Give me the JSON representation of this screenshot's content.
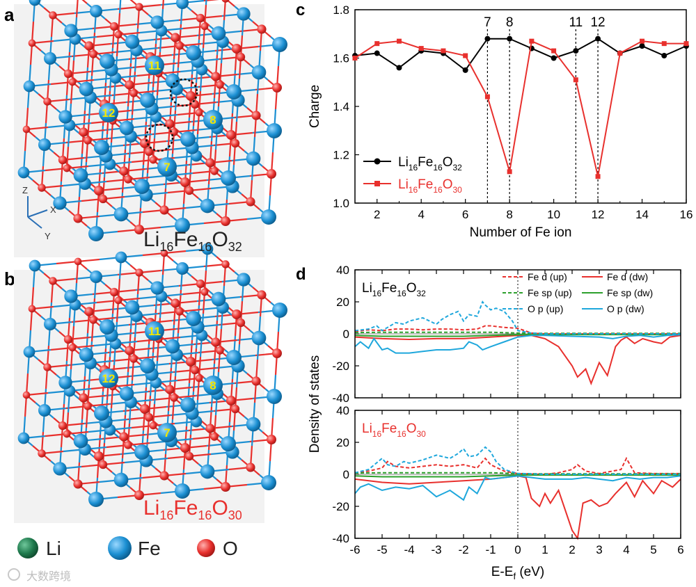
{
  "panels": {
    "a": "a",
    "b": "b",
    "c": "c",
    "d": "d"
  },
  "structure_a": {
    "formula": {
      "base1": "Li",
      "sub1": "16",
      "base2": "Fe",
      "sub2": "16",
      "base3": "O",
      "sub3": "32"
    },
    "site_labels": [
      "11",
      "12",
      "8",
      "7"
    ],
    "axes": {
      "z": "Z",
      "x": "X",
      "y": "Y"
    }
  },
  "structure_b": {
    "formula": {
      "base1": "Li",
      "sub1": "16",
      "base2": "Fe",
      "sub2": "16",
      "base3": "O",
      "sub3": "30"
    },
    "site_labels": [
      "11",
      "12",
      "8",
      "7"
    ]
  },
  "atom_legend": [
    {
      "label": "Li",
      "color": "#1f7a4d"
    },
    {
      "label": "Fe",
      "color": "#1b8fd2"
    },
    {
      "label": "O",
      "color": "#e8302d"
    }
  ],
  "watermark": "大数跨境",
  "colors": {
    "li": "#1f7a4d",
    "fe": "#1b8fd2",
    "o": "#e8302d",
    "black": "#000000",
    "red": "#e8302d",
    "green": "#2ca02c",
    "cyan": "#1ea7dc"
  },
  "chart_data": [
    {
      "type": "line",
      "panel": "c",
      "xlabel": "Number of Fe ion",
      "ylabel": "Charge",
      "xlim": [
        1,
        16
      ],
      "ylim": [
        1.0,
        1.8
      ],
      "xticks": [
        2,
        4,
        6,
        8,
        10,
        12,
        14,
        16
      ],
      "yticks": [
        1.0,
        1.2,
        1.4,
        1.6,
        1.8
      ],
      "x": [
        1,
        2,
        3,
        4,
        5,
        6,
        7,
        8,
        9,
        10,
        11,
        12,
        13,
        14,
        15,
        16
      ],
      "series": [
        {
          "name": "Li16Fe16O32",
          "base1": "Li",
          "sub1": "16",
          "base2": "Fe",
          "sub2": "16",
          "base3": "O",
          "sub3": "32",
          "color": "#000000",
          "marker": "circle",
          "values": [
            1.61,
            1.62,
            1.56,
            1.63,
            1.62,
            1.55,
            1.68,
            1.68,
            1.64,
            1.6,
            1.63,
            1.68,
            1.62,
            1.65,
            1.61,
            1.65
          ]
        },
        {
          "name": "Li16Fe16O30",
          "base1": "Li",
          "sub1": "16",
          "base2": "Fe",
          "sub2": "16",
          "base3": "O",
          "sub3": "30",
          "color": "#e8302d",
          "marker": "square",
          "values": [
            1.6,
            1.66,
            1.67,
            1.64,
            1.63,
            1.61,
            1.44,
            1.13,
            1.67,
            1.63,
            1.51,
            1.11,
            1.62,
            1.67,
            1.66,
            1.66
          ]
        }
      ],
      "vlines": [
        {
          "x": 7,
          "label": "7"
        },
        {
          "x": 8,
          "label": "8"
        },
        {
          "x": 11,
          "label": "11"
        },
        {
          "x": 12,
          "label": "12"
        }
      ]
    },
    {
      "type": "line",
      "panel": "d",
      "xlabel": "E-E",
      "xlabel_sub": "f",
      "xlabel_unit": " (eV)",
      "ylabel": "Density of states",
      "xlim": [
        -6,
        6
      ],
      "xticks": [
        -6,
        -5,
        -4,
        -3,
        -2,
        -1,
        0,
        1,
        2,
        3,
        4,
        5,
        6
      ],
      "subplots": [
        {
          "title": {
            "base1": "Li",
            "sub1": "16",
            "base2": "Fe",
            "sub2": "16",
            "base3": "O",
            "sub3": "32"
          },
          "title_color": "#000000",
          "ylim": [
            -40,
            40
          ],
          "yticks": [
            -40,
            -20,
            0,
            20,
            40
          ],
          "series": [
            {
              "name": "Fe d (up)",
              "color": "#e8302d",
              "dash": true,
              "x": [
                -6,
                -5.5,
                -5,
                -4.5,
                -4,
                -3.5,
                -3,
                -2.5,
                -2,
                -1.5,
                -1.2,
                -1,
                -0.5,
                0,
                0.5,
                1,
                2,
                3,
                4,
                5,
                6
              ],
              "y": [
                1.5,
                2.5,
                2,
                3,
                3,
                2.5,
                3,
                3,
                2.5,
                3,
                5,
                5,
                4,
                3.5,
                0.5,
                0,
                0,
                0,
                0,
                0,
                0
              ]
            },
            {
              "name": "Fe d (dw)",
              "color": "#e8302d",
              "dash": false,
              "x": [
                -6,
                -5,
                -4,
                -3,
                -2,
                -1,
                0,
                0.5,
                1,
                1.5,
                2,
                2.2,
                2.5,
                2.7,
                3,
                3.3,
                3.6,
                3.8,
                4,
                4.3,
                4.6,
                5,
                5.3,
                5.6,
                6
              ],
              "y": [
                -2,
                -3,
                -3.5,
                -3,
                -3,
                -2,
                -1,
                -1,
                -3,
                -8,
                -20,
                -27,
                -22,
                -31,
                -18,
                -26,
                -8,
                -4,
                -2,
                -6,
                -3,
                -5,
                -6,
                -2,
                -1
              ]
            },
            {
              "name": "Fe sp (up)",
              "color": "#2ca02c",
              "dash": true,
              "x": [
                -6,
                -5,
                -4,
                -3,
                -2,
                -1,
                0,
                1,
                2,
                3,
                4,
                5,
                6
              ],
              "y": [
                0.8,
                1,
                1,
                1,
                1,
                1,
                0.5,
                0.3,
                0.3,
                0.3,
                0.3,
                0.3,
                0.3
              ]
            },
            {
              "name": "Fe sp (dw)",
              "color": "#2ca02c",
              "dash": false,
              "x": [
                -6,
                -5,
                -4,
                -3,
                -2,
                -1,
                0,
                1,
                2,
                3,
                4,
                5,
                6
              ],
              "y": [
                -1,
                -1.5,
                -1.5,
                -1.5,
                -1.5,
                -1,
                -0.5,
                -0.5,
                -0.5,
                -0.5,
                -0.5,
                -0.5,
                -0.5
              ]
            },
            {
              "name": "O p (up)",
              "color": "#1ea7dc",
              "dash": true,
              "x": [
                -6,
                -5.5,
                -5.2,
                -5,
                -4.8,
                -4.5,
                -4.2,
                -4,
                -3.5,
                -3,
                -2.8,
                -2.5,
                -2.2,
                -2,
                -1.8,
                -1.5,
                -1.3,
                -1.2,
                -1,
                -0.8,
                -0.5,
                -0.2,
                0,
                0.5,
                1,
                2,
                3,
                4,
                5,
                6
              ],
              "y": [
                2,
                3,
                5,
                2,
                4,
                7,
                6,
                8,
                10,
                6,
                9,
                12,
                14,
                8,
                12,
                11,
                20,
                18,
                15,
                16,
                14,
                8,
                2,
                0.5,
                0,
                0,
                0,
                0,
                0,
                0
              ]
            },
            {
              "name": "O p (dw)",
              "color": "#1ea7dc",
              "dash": false,
              "x": [
                -6,
                -5.8,
                -5.5,
                -5.3,
                -5,
                -4.8,
                -4.5,
                -4,
                -3.5,
                -3,
                -2.5,
                -2,
                -1.8,
                -1.5,
                -1.3,
                -1,
                -0.5,
                0,
                0.5,
                1,
                2,
                3,
                3.5,
                4,
                4.5,
                5,
                5.5,
                6
              ],
              "y": [
                -8,
                -5,
                -9,
                -3,
                -10,
                -9,
                -12,
                -12,
                -11,
                -10,
                -10,
                -9,
                -5,
                -7,
                -10,
                -8,
                -5,
                -2,
                -1,
                -1,
                -1.5,
                -2,
                -3,
                -1.5,
                -1,
                -2,
                -1,
                -0.5
              ]
            }
          ]
        },
        {
          "title": {
            "base1": "Li",
            "sub1": "16",
            "base2": "Fe",
            "sub2": "16",
            "base3": "O",
            "sub3": "30"
          },
          "title_color": "#e8302d",
          "ylim": [
            -40,
            40
          ],
          "yticks": [
            -40,
            -20,
            0,
            20,
            40
          ],
          "series": [
            {
              "name": "Fe d (up)",
              "color": "#e8302d",
              "dash": true,
              "x": [
                -6,
                -5.5,
                -5,
                -4.8,
                -4.5,
                -4,
                -3.5,
                -3,
                -2.5,
                -2,
                -1.5,
                -1.2,
                -1,
                -0.5,
                0,
                1,
                1.5,
                2,
                2.2,
                2.5,
                3,
                3.8,
                4,
                4.3,
                5,
                6
              ],
              "y": [
                1,
                2,
                4,
                8,
                5,
                4,
                5,
                6,
                5,
                6,
                4,
                10,
                6,
                2,
                0.5,
                0,
                1,
                3,
                6,
                2,
                0.5,
                3,
                10,
                1,
                0.5,
                0.5
              ]
            },
            {
              "name": "Fe d (dw)",
              "color": "#e8302d",
              "dash": false,
              "x": [
                -6,
                -5,
                -4,
                -3,
                -2,
                -1,
                0,
                0.3,
                0.5,
                0.8,
                1,
                1.2,
                1.5,
                1.8,
                2,
                2.2,
                2.4,
                2.7,
                3,
                3.3,
                3.6,
                4,
                4.3,
                4.6,
                5,
                5.3,
                5.7,
                6
              ],
              "y": [
                -3,
                -5,
                -6,
                -5,
                -4,
                -3,
                -1,
                -2,
                -15,
                -20,
                -12,
                -18,
                -10,
                -25,
                -35,
                -40,
                -18,
                -16,
                -20,
                -18,
                -12,
                -5,
                -14,
                -4,
                -12,
                -4,
                -8,
                -3
              ]
            },
            {
              "name": "Fe sp (up)",
              "color": "#2ca02c",
              "dash": true,
              "x": [
                -6,
                -5,
                -4,
                -3,
                -2,
                -1,
                0,
                1,
                2,
                3,
                4,
                5,
                6
              ],
              "y": [
                0.8,
                1,
                1,
                1,
                1,
                1,
                0.5,
                0.3,
                0.3,
                0.3,
                0.3,
                0.3,
                0.3
              ]
            },
            {
              "name": "Fe sp (dw)",
              "color": "#2ca02c",
              "dash": false,
              "x": [
                -6,
                -5,
                -4,
                -3,
                -2,
                -1,
                0,
                1,
                2,
                3,
                4,
                5,
                6
              ],
              "y": [
                -1,
                -1.5,
                -1.5,
                -1.5,
                -1.5,
                -1,
                -0.5,
                -0.5,
                -0.5,
                -0.5,
                -0.5,
                -0.5,
                -0.5
              ]
            },
            {
              "name": "O p (up)",
              "color": "#1ea7dc",
              "dash": true,
              "x": [
                -6,
                -5.5,
                -5,
                -4.8,
                -4.5,
                -4.2,
                -4,
                -3.5,
                -3,
                -2.5,
                -2.2,
                -2,
                -1.8,
                -1.5,
                -1.2,
                -1,
                -0.8,
                -0.5,
                0,
                1,
                2,
                3,
                4,
                5,
                6
              ],
              "y": [
                1,
                3,
                10,
                6,
                5,
                8,
                7,
                9,
                12,
                10,
                13,
                16,
                11,
                12,
                17,
                14,
                8,
                3,
                0.5,
                0,
                0,
                0,
                0,
                0,
                0
              ]
            },
            {
              "name": "O p (dw)",
              "color": "#1ea7dc",
              "dash": false,
              "x": [
                -6,
                -5.8,
                -5.5,
                -5,
                -4.5,
                -4,
                -3.5,
                -3,
                -2.5,
                -2,
                -1.8,
                -1.5,
                -1.2,
                -1,
                -0.5,
                0,
                0.5,
                1,
                2,
                2.5,
                3,
                3.5,
                4,
                4.5,
                5,
                5.5,
                6
              ],
              "y": [
                -12,
                -8,
                -6,
                -10,
                -8,
                -9,
                -7,
                -14,
                -10,
                -16,
                -8,
                -12,
                -2,
                -3,
                -2,
                -1,
                -2,
                -3,
                -3,
                -2,
                -3,
                -4,
                -2,
                -3,
                -2,
                -2,
                -1
              ]
            }
          ]
        }
      ]
    }
  ]
}
